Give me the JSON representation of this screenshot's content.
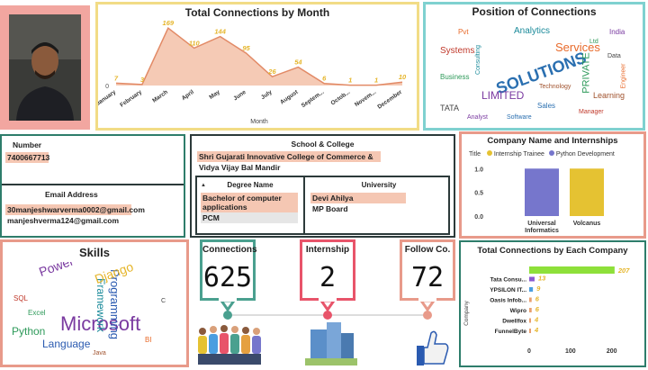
{
  "profile": {
    "avatar_alt": "profile photo"
  },
  "connections_chart": {
    "title": "Total Connections by Month",
    "xlabel": "Month",
    "chart_data": {
      "type": "area",
      "categories": [
        "January",
        "February",
        "March",
        "April",
        "May",
        "June",
        "July",
        "August",
        "Septem...",
        "Octob...",
        "Novem...",
        "December"
      ],
      "values": [
        7,
        3,
        169,
        110,
        144,
        95,
        26,
        54,
        6,
        1,
        1,
        10
      ],
      "ylim": [
        0,
        180
      ]
    }
  },
  "word_cloud": {
    "title": "Position of Connections",
    "words": [
      "SOLUTIONS",
      "Services",
      "LIMITED",
      "PRIVATE",
      "Systems",
      "Analytics",
      "Learning",
      "TATA",
      "Sales",
      "Pvt",
      "India",
      "Business",
      "Manager",
      "Consulting",
      "Technology",
      "Data",
      "Software",
      "Engineer",
      "Analyst",
      "Ltd"
    ]
  },
  "contact": {
    "number_label": "Number",
    "number": "7400667713",
    "email_label": "Email Address",
    "email_1": "30manjeshwarverma0002@gmail.com",
    "email_2": "manjeshverma124@gmail.com"
  },
  "education": {
    "school_label": "School & College",
    "school_1": "Shri Gujarati Innovative College of Commerce & Science",
    "school_2": "Vidya Vijay Bal Mandir",
    "degree_label": "Degree Name",
    "degree_1": "Bachelor of computer applications",
    "degree_2": "PCM",
    "university_label": "University",
    "university_1": "Devi Ahilya Vishwavidyalaya",
    "university_2": "MP Board"
  },
  "internships_chart": {
    "title": "Company Name and Internships",
    "legend_title": "Title",
    "chart_data": {
      "type": "bar",
      "categories": [
        "Universal Informatics",
        "Volcanus"
      ],
      "series": [
        {
          "name": "Internship Trainee",
          "values": [
            1.0,
            0
          ]
        },
        {
          "name": "Python Development",
          "values": [
            0,
            1.0
          ]
        }
      ],
      "yticks": [
        "0.0",
        "0.5",
        "1.0"
      ],
      "ylim": [
        0,
        1.1
      ]
    },
    "colors": {
      "trainee": "#e5c232",
      "python": "#7676cc"
    }
  },
  "skills": {
    "title": "Skills",
    "words": [
      "Microsoft",
      "Programming",
      "Framework",
      "Django",
      "Power",
      "Python",
      "Language",
      "SQL",
      "BI",
      "Excel",
      "C",
      "Java"
    ]
  },
  "kpis": [
    {
      "title": "Connections",
      "value": "625",
      "color": "#4aa08f"
    },
    {
      "title": "Internship",
      "value": "2",
      "color": "#e8546a"
    },
    {
      "title": "Follow Co.",
      "value": "72",
      "color": "#e89a8a"
    }
  ],
  "company_chart": {
    "title": "Total Connections by Each Company",
    "ylabel": "Company",
    "chart_data": {
      "type": "bar",
      "categories": [
        "",
        "Tata Consu...",
        "YPSILON IT...",
        "Oasis Infob...",
        "Wipro",
        "Dwellfox",
        "FunnelByte"
      ],
      "values": [
        207,
        13,
        9,
        6,
        6,
        4,
        4
      ],
      "colors": [
        "#8ee03a",
        "#8a5ad0",
        "#4a9ee0",
        "#e8a070",
        "#e8a070",
        "#e8a070",
        "#e8a070"
      ],
      "xticks": [
        0,
        100,
        200
      ],
      "xlim": [
        0,
        240
      ]
    }
  }
}
